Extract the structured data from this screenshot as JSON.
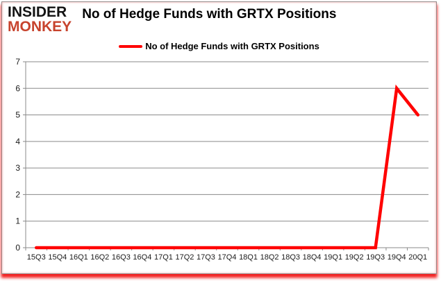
{
  "logo": {
    "line1": "INSIDER",
    "line2": "MONKEY"
  },
  "header": {
    "title": "No of Hedge Funds with GRTX Positions"
  },
  "legend": {
    "label": "No of Hedge Funds with GRTX Positions",
    "color": "#ff0000"
  },
  "colors": {
    "line": "#ff0000",
    "grid": "#8a8a8a",
    "axis": "#8a8a8a",
    "tick_label": "#1a1a1a",
    "logo_black": "#131313",
    "logo_red": "#c7432d",
    "bottom_shadow_red": "#f20f0f",
    "card_background": "#ffffff"
  },
  "chart_data": {
    "type": "line",
    "title": "No of Hedge Funds with GRTX Positions",
    "categories": [
      "15Q3",
      "15Q4",
      "16Q1",
      "16Q2",
      "16Q3",
      "16Q4",
      "17Q1",
      "17Q2",
      "17Q3",
      "17Q4",
      "18Q1",
      "18Q2",
      "18Q3",
      "18Q4",
      "19Q1",
      "19Q2",
      "19Q3",
      "19Q4",
      "20Q1"
    ],
    "series": [
      {
        "name": "No of Hedge Funds with GRTX Positions",
        "color": "#ff0000",
        "values": [
          0,
          0,
          0,
          0,
          0,
          0,
          0,
          0,
          0,
          0,
          0,
          0,
          0,
          0,
          0,
          0,
          0,
          6,
          5
        ]
      }
    ],
    "xlabel": "",
    "ylabel": "",
    "ylim": [
      0,
      7
    ],
    "yticks": [
      0,
      1,
      2,
      3,
      4,
      5,
      6,
      7
    ],
    "grid": true,
    "legend_position": "top-center"
  }
}
